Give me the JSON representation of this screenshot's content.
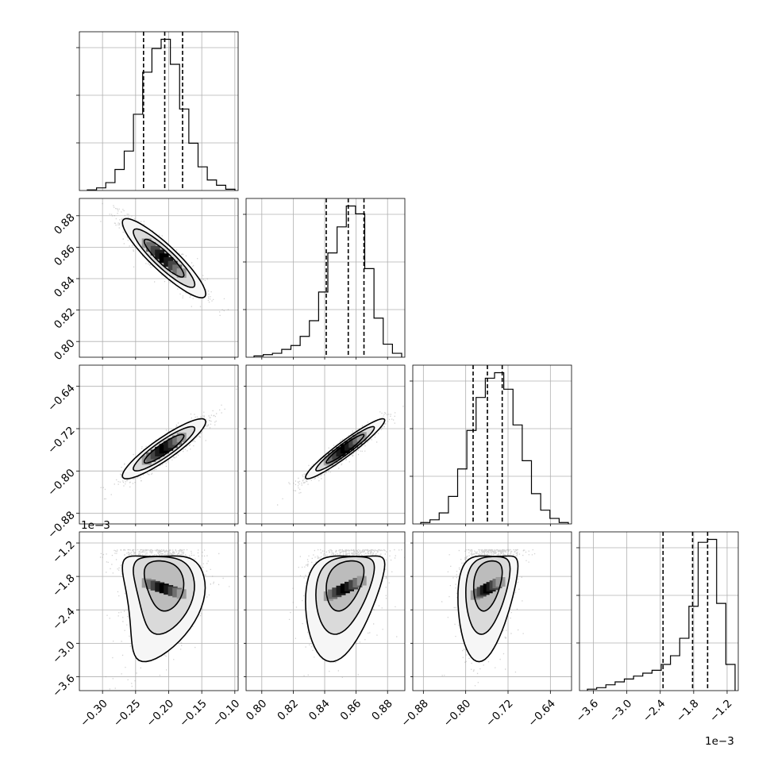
{
  "chart_data": {
    "type": "corner",
    "parameters": [
      {
        "ticks": [
          -0.3,
          -0.25,
          -0.2,
          -0.15,
          -0.1
        ],
        "tick_labels": [
          "−0.30",
          "−0.25",
          "−0.20",
          "−0.15",
          "−0.10"
        ],
        "range": [
          -0.335,
          -0.095
        ],
        "mean": -0.207,
        "sd": 0.03,
        "quantiles": [
          -0.238,
          -0.206,
          -0.179
        ]
      },
      {
        "ticks": [
          0.8,
          0.82,
          0.84,
          0.86,
          0.88
        ],
        "tick_labels": [
          "0.80",
          "0.82",
          "0.84",
          "0.86",
          "0.88"
        ],
        "range": [
          0.79,
          0.891
        ],
        "mean": 0.853,
        "sd": 0.012,
        "quantiles": [
          0.841,
          0.855,
          0.865
        ]
      },
      {
        "ticks": [
          -0.88,
          -0.8,
          -0.72,
          -0.64
        ],
        "tick_labels": [
          "−0.88",
          "−0.80",
          "−0.72",
          "−0.64"
        ],
        "range": [
          -0.9,
          -0.6
        ],
        "mean": -0.758,
        "sd": 0.027,
        "quantiles": [
          -0.786,
          -0.759,
          -0.731
        ]
      },
      {
        "ticks": [
          -3.6,
          -3.0,
          -2.4,
          -1.8,
          -1.2
        ],
        "tick_labels": [
          "−3.6",
          "−3.0",
          "−2.4",
          "−1.8",
          "−1.2"
        ],
        "offset_label": "1e−3",
        "range": [
          -3.85,
          -1.0
        ],
        "mean": -1.85,
        "sd": 0.45,
        "quantiles": [
          -2.35,
          -1.82,
          -1.55
        ]
      }
    ],
    "histograms": [
      [
        0.5,
        2,
        6,
        16,
        30,
        58,
        90,
        108,
        115,
        96,
        62,
        36,
        18,
        8,
        4,
        1
      ],
      [
        1,
        2,
        3,
        6,
        9,
        16,
        28,
        50,
        80,
        100,
        116,
        110,
        68,
        30,
        10,
        3
      ],
      [
        1,
        3,
        8,
        20,
        40,
        68,
        92,
        106,
        110,
        98,
        72,
        46,
        22,
        10,
        4,
        1
      ],
      [
        1,
        2,
        4,
        6,
        8,
        10,
        12,
        14,
        18,
        24,
        36,
        58,
        102,
        104,
        60,
        18
      ]
    ],
    "correlations": [
      [
        null,
        null,
        null
      ],
      [
        -0.9,
        null,
        null
      ],
      [
        0.9,
        0.95,
        null
      ],
      [
        -0.25,
        0.35,
        0.3
      ]
    ],
    "grid": true
  }
}
